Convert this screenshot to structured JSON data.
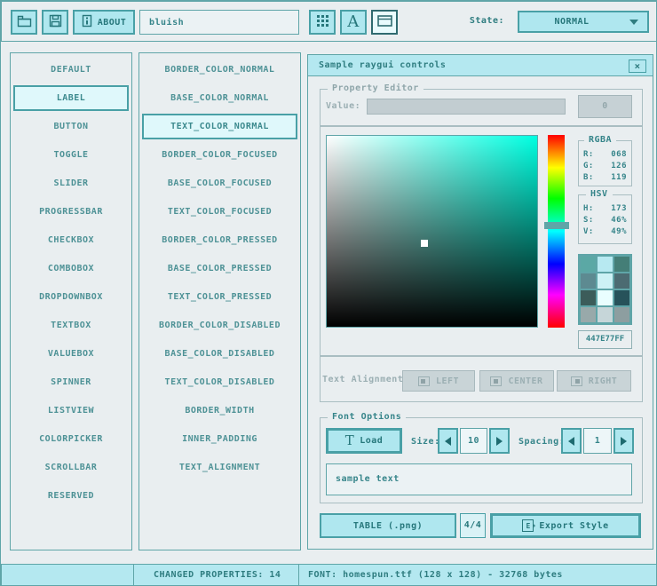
{
  "colors": {
    "page_bg": "#E9EEF0",
    "panel_border": "#5FA5A8",
    "accent_bg": "#AFE7EF",
    "accent_border": "#49A0A6",
    "accent_text": "#26777B",
    "titlebar_bg": "#B4E8F0",
    "selected_bg": "#DFF8FB",
    "disabled_bg": "#C9D4D7",
    "disabled_text": "#9BAFB3",
    "picker_hue": "#00FFE1",
    "selected_color_hex": "#447E77"
  },
  "toolbar": {
    "about_label": "ABOUT",
    "style_name": "bluish",
    "state_label": "State:",
    "state_value": "NORMAL"
  },
  "controls_list": {
    "selected_index": 1,
    "items": [
      "DEFAULT",
      "LABEL",
      "BUTTON",
      "TOGGLE",
      "SLIDER",
      "PROGRESSBAR",
      "CHECKBOX",
      "COMBOBOX",
      "DROPDOWNBOX",
      "TEXTBOX",
      "VALUEBOX",
      "SPINNER",
      "LISTVIEW",
      "COLORPICKER",
      "SCROLLBAR",
      "RESERVED"
    ]
  },
  "properties_list": {
    "selected_index": 2,
    "items": [
      "BORDER_COLOR_NORMAL",
      "BASE_COLOR_NORMAL",
      "TEXT_COLOR_NORMAL",
      "BORDER_COLOR_FOCUSED",
      "BASE_COLOR_FOCUSED",
      "TEXT_COLOR_FOCUSED",
      "BORDER_COLOR_PRESSED",
      "BASE_COLOR_PRESSED",
      "TEXT_COLOR_PRESSED",
      "BORDER_COLOR_DISABLED",
      "BASE_COLOR_DISABLED",
      "TEXT_COLOR_DISABLED",
      "BORDER_WIDTH",
      "INNER_PADDING",
      "TEXT_ALIGNMENT"
    ]
  },
  "sample_window": {
    "title": "Sample raygui controls",
    "close_glyph": "×",
    "property_editor": {
      "group_label": "Property Editor",
      "value_label": "Value:",
      "value": "0"
    },
    "color_picker": {
      "rgba_label": "RGBA",
      "rgba": [
        {
          "label": "R:",
          "value": "068"
        },
        {
          "label": "G:",
          "value": "126"
        },
        {
          "label": "B:",
          "value": "119"
        }
      ],
      "hsv_label": "HSV",
      "hsv": [
        {
          "label": "H:",
          "value": "173"
        },
        {
          "label": "S:",
          "value": "46%"
        },
        {
          "label": "V:",
          "value": "49%"
        }
      ],
      "hex_value": "447E77FF",
      "swatches": [
        [
          "#5BA8A5",
          "#B7E9F1",
          "#447E77"
        ],
        [
          "#5D8A91",
          "#CDF1F5",
          "#4C6B72"
        ],
        [
          "#3C5C5A",
          "#E9FEFF",
          "#27525A"
        ],
        [
          "#98A9AA",
          "#C6D6D9",
          "#8D9EA0"
        ]
      ]
    },
    "text_alignment": {
      "label": "Text Alignment:",
      "buttons": [
        "LEFT",
        "CENTER",
        "RIGHT"
      ]
    },
    "font_options": {
      "group_label": "Font Options",
      "load_label": "Load",
      "size_label": "Size:",
      "size_value": "10",
      "spacing_label": "Spacing:",
      "spacing_value": "1",
      "sample_text": "sample text"
    },
    "export_row": {
      "format_label": "TABLE (.png)",
      "pages": "4/4",
      "export_label": "Export Style"
    }
  },
  "status_bar": {
    "changed_label": "CHANGED PROPERTIES: 14",
    "font_label": "FONT: homespun.ttf (128 x 128) - 32768 bytes"
  }
}
